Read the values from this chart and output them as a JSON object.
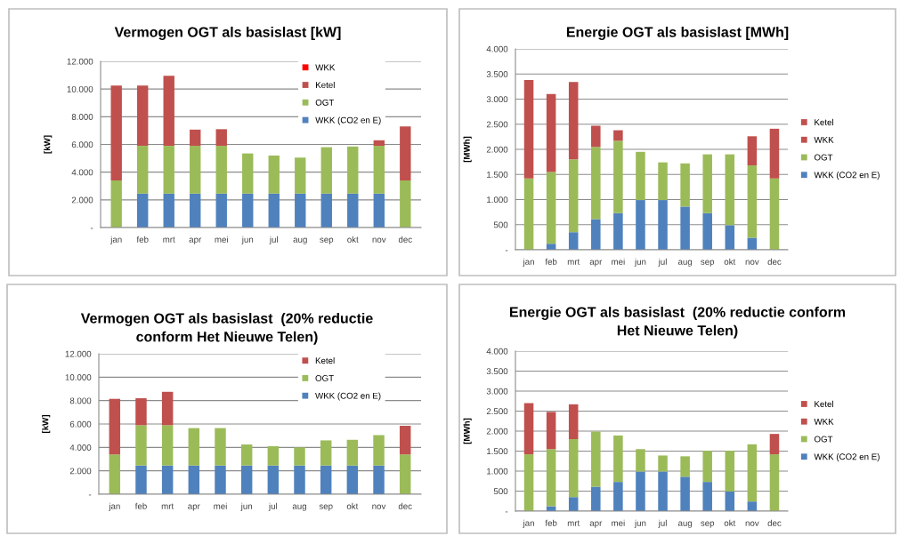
{
  "chart_data": [
    {
      "type": "bar",
      "title": "Vermogen OGT als basislast [kW]",
      "ylabel": "[kW]",
      "stacked": true,
      "grid": "y",
      "legend": "top right",
      "categories": [
        "jan",
        "feb",
        "mrt",
        "apr",
        "mei",
        "jun",
        "jul",
        "aug",
        "sep",
        "okt",
        "nov",
        "dec"
      ],
      "ylim": [
        0,
        12000
      ],
      "yticks": [
        {
          "value": 0,
          "label": "-"
        },
        {
          "value": 2000,
          "label": "2.000"
        },
        {
          "value": 4000,
          "label": "4.000"
        },
        {
          "value": 6000,
          "label": "6.000"
        },
        {
          "value": 8000,
          "label": "8.000"
        },
        {
          "value": 10000,
          "label": "10.000"
        },
        {
          "value": 12000,
          "label": "12.000"
        }
      ],
      "series": [
        {
          "name": "WKK (CO2 en E)",
          "color": "#4f81bd",
          "values": [
            0,
            2450,
            2450,
            2450,
            2450,
            2450,
            2450,
            2450,
            2450,
            2450,
            2450,
            0
          ]
        },
        {
          "name": "OGT",
          "color": "#9bbb59",
          "values": [
            3400,
            3450,
            3450,
            3450,
            3450,
            2900,
            2750,
            2600,
            3350,
            3400,
            3450,
            3400
          ]
        },
        {
          "name": "Ketel",
          "color": "#c0504d",
          "values": [
            6850,
            4350,
            5050,
            1170,
            1200,
            0,
            0,
            0,
            0,
            0,
            400,
            3900
          ]
        },
        {
          "name": "WKK",
          "color": "#ff0000",
          "values": [
            0,
            0,
            0,
            0,
            0,
            0,
            0,
            0,
            0,
            0,
            0,
            0
          ]
        }
      ]
    },
    {
      "type": "bar",
      "title": "Energie OGT als basislast [MWh]",
      "ylabel": "[MWh]",
      "stacked": true,
      "grid": "y",
      "legend": "right",
      "categories": [
        "jan",
        "feb",
        "mrt",
        "apr",
        "mei",
        "jun",
        "jul",
        "aug",
        "sep",
        "okt",
        "nov",
        "dec"
      ],
      "ylim": [
        0,
        4000
      ],
      "yticks": [
        {
          "value": 0,
          "label": "-"
        },
        {
          "value": 500,
          "label": "500"
        },
        {
          "value": 1000,
          "label": "1.000"
        },
        {
          "value": 1500,
          "label": "1.500"
        },
        {
          "value": 2000,
          "label": "2.000"
        },
        {
          "value": 2500,
          "label": "2.500"
        },
        {
          "value": 3000,
          "label": "3.000"
        },
        {
          "value": 3500,
          "label": "3.500"
        },
        {
          "value": 4000,
          "label": "4.000"
        }
      ],
      "series": [
        {
          "name": "WKK (CO2 en E)",
          "color": "#4f81bd",
          "values": [
            0,
            120,
            350,
            610,
            730,
            990,
            990,
            860,
            730,
            490,
            240,
            0
          ]
        },
        {
          "name": "OGT",
          "color": "#9bbb59",
          "values": [
            1420,
            1430,
            1450,
            1440,
            1440,
            960,
            750,
            860,
            1170,
            1410,
            1440,
            1420
          ]
        },
        {
          "name": "WKK",
          "color": "#c0504d",
          "values": [
            0,
            0,
            0,
            0,
            0,
            0,
            0,
            0,
            0,
            0,
            0,
            0
          ]
        },
        {
          "name": "Ketel",
          "color": "#c0504d",
          "values": [
            1960,
            1550,
            1540,
            420,
            210,
            0,
            0,
            0,
            0,
            0,
            580,
            990
          ]
        }
      ]
    },
    {
      "type": "bar",
      "title": "Vermogen OGT als basislast  (20% reductie\nconform Het Nieuwe Telen)",
      "ylabel": "[kW]",
      "stacked": true,
      "grid": "y",
      "legend": "top right",
      "categories": [
        "jan",
        "feb",
        "mrt",
        "apr",
        "mei",
        "jun",
        "jul",
        "aug",
        "sep",
        "okt",
        "nov",
        "dec"
      ],
      "ylim": [
        0,
        12000
      ],
      "yticks": [
        {
          "value": 0,
          "label": "-"
        },
        {
          "value": 2000,
          "label": "2.000"
        },
        {
          "value": 4000,
          "label": "4.000"
        },
        {
          "value": 6000,
          "label": "6.000"
        },
        {
          "value": 8000,
          "label": "8.000"
        },
        {
          "value": 10000,
          "label": "10.000"
        },
        {
          "value": 12000,
          "label": "12.000"
        }
      ],
      "series": [
        {
          "name": "WKK (CO2 en E)",
          "color": "#4f81bd",
          "values": [
            0,
            2450,
            2450,
            2450,
            2450,
            2450,
            2450,
            2450,
            2450,
            2450,
            2450,
            0
          ]
        },
        {
          "name": "OGT",
          "color": "#9bbb59",
          "values": [
            3400,
            3450,
            3450,
            3200,
            3200,
            1800,
            1650,
            1550,
            2150,
            2200,
            2600,
            3400
          ]
        },
        {
          "name": "Ketel",
          "color": "#c0504d",
          "values": [
            4750,
            2300,
            2850,
            0,
            0,
            0,
            0,
            0,
            0,
            0,
            0,
            2450
          ]
        }
      ]
    },
    {
      "type": "bar",
      "title": "Energie OGT als basislast  (20% reductie conform\nHet Nieuwe Telen)",
      "ylabel": "[MWh]",
      "stacked": true,
      "grid": "y",
      "legend": "right",
      "categories": [
        "jan",
        "feb",
        "mrt",
        "apr",
        "mei",
        "jun",
        "jul",
        "aug",
        "sep",
        "okt",
        "nov",
        "dec"
      ],
      "ylim": [
        0,
        4000
      ],
      "yticks": [
        {
          "value": 0,
          "label": "-"
        },
        {
          "value": 500,
          "label": "500"
        },
        {
          "value": 1000,
          "label": "1.000"
        },
        {
          "value": 1500,
          "label": "1.500"
        },
        {
          "value": 2000,
          "label": "2.000"
        },
        {
          "value": 2500,
          "label": "2.500"
        },
        {
          "value": 3000,
          "label": "3.000"
        },
        {
          "value": 3500,
          "label": "3.500"
        },
        {
          "value": 4000,
          "label": "4.000"
        }
      ],
      "series": [
        {
          "name": "WKK (CO2 en E)",
          "color": "#4f81bd",
          "values": [
            0,
            120,
            350,
            610,
            730,
            990,
            990,
            860,
            730,
            490,
            240,
            0
          ]
        },
        {
          "name": "OGT",
          "color": "#9bbb59",
          "values": [
            1420,
            1430,
            1450,
            1380,
            1160,
            560,
            400,
            510,
            780,
            1020,
            1430,
            1420
          ]
        },
        {
          "name": "WKK",
          "color": "#c0504d",
          "values": [
            0,
            0,
            0,
            0,
            0,
            0,
            0,
            0,
            0,
            0,
            0,
            0
          ]
        },
        {
          "name": "Ketel",
          "color": "#c0504d",
          "values": [
            1280,
            930,
            870,
            0,
            0,
            0,
            0,
            0,
            0,
            0,
            0,
            510
          ]
        }
      ]
    }
  ]
}
